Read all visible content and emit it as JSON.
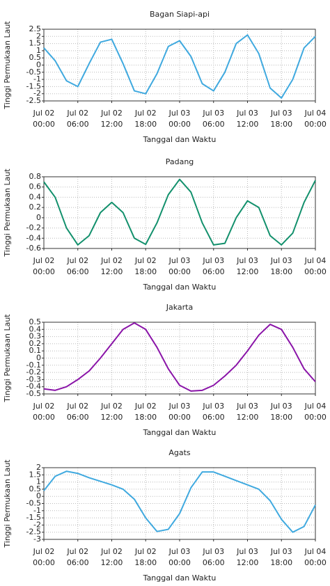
{
  "chart_data": [
    {
      "type": "line",
      "title": "Bagan Siapi-api",
      "x_label": "Tanggal dan Waktu",
      "y_label": "Tinggi Permukaan Laut",
      "color": "#3fa9df",
      "grid": true,
      "x": [
        "Jul 02 00:00",
        "Jul 02 02:00",
        "Jul 02 04:00",
        "Jul 02 06:00",
        "Jul 02 08:00",
        "Jul 02 10:00",
        "Jul 02 12:00",
        "Jul 02 14:00",
        "Jul 02 16:00",
        "Jul 02 18:00",
        "Jul 02 20:00",
        "Jul 02 22:00",
        "Jul 03 00:00",
        "Jul 03 02:00",
        "Jul 03 04:00",
        "Jul 03 06:00",
        "Jul 03 08:00",
        "Jul 03 10:00",
        "Jul 03 12:00",
        "Jul 03 14:00",
        "Jul 03 16:00",
        "Jul 03 18:00",
        "Jul 03 20:00",
        "Jul 03 22:00",
        "Jul 04 00:00"
      ],
      "values": [
        1.2,
        0.3,
        -1.1,
        -1.5,
        0.1,
        1.6,
        1.8,
        0.1,
        -1.8,
        -2.0,
        -0.6,
        1.3,
        1.7,
        0.6,
        -1.3,
        -1.8,
        -0.5,
        1.5,
        2.1,
        0.8,
        -1.6,
        -2.3,
        -1.0,
        1.2,
        2.0
      ],
      "xlim": [
        "Jul 02 00:00",
        "Jul 04 00:00"
      ],
      "xticks": [
        "Jul 02 00:00",
        "Jul 02 06:00",
        "Jul 02 12:00",
        "Jul 02 18:00",
        "Jul 03 00:00",
        "Jul 03 06:00",
        "Jul 03 12:00",
        "Jul 03 18:00",
        "Jul 04 00:00"
      ],
      "ylim": [
        -2.5,
        2.5
      ],
      "yticks": [
        -2.5,
        -2,
        -1.5,
        -1,
        -0.5,
        0,
        0.5,
        1,
        1.5,
        2,
        2.5
      ]
    },
    {
      "type": "line",
      "title": "Padang",
      "x_label": "Tanggal dan Waktu",
      "y_label": "Tinggi Permukaan Laut",
      "color": "#12906c",
      "grid": true,
      "x": [
        "Jul 02 00:00",
        "Jul 02 02:00",
        "Jul 02 04:00",
        "Jul 02 06:00",
        "Jul 02 08:00",
        "Jul 02 10:00",
        "Jul 02 12:00",
        "Jul 02 14:00",
        "Jul 02 16:00",
        "Jul 02 18:00",
        "Jul 02 20:00",
        "Jul 02 22:00",
        "Jul 03 00:00",
        "Jul 03 02:00",
        "Jul 03 04:00",
        "Jul 03 06:00",
        "Jul 03 08:00",
        "Jul 03 10:00",
        "Jul 03 12:00",
        "Jul 03 14:00",
        "Jul 03 16:00",
        "Jul 03 18:00",
        "Jul 03 20:00",
        "Jul 03 22:00",
        "Jul 04 00:00"
      ],
      "values": [
        0.7,
        0.4,
        -0.2,
        -0.53,
        -0.35,
        0.1,
        0.3,
        0.1,
        -0.4,
        -0.52,
        -0.1,
        0.45,
        0.75,
        0.5,
        -0.1,
        -0.53,
        -0.5,
        0.0,
        0.33,
        0.2,
        -0.35,
        -0.53,
        -0.3,
        0.3,
        0.73
      ],
      "xlim": [
        "Jul 02 00:00",
        "Jul 04 00:00"
      ],
      "xticks": [
        "Jul 02 00:00",
        "Jul 02 06:00",
        "Jul 02 12:00",
        "Jul 02 18:00",
        "Jul 03 00:00",
        "Jul 03 06:00",
        "Jul 03 12:00",
        "Jul 03 18:00",
        "Jul 04 00:00"
      ],
      "ylim": [
        -0.6,
        0.8
      ],
      "yticks": [
        -0.6,
        -0.4,
        -0.2,
        0,
        0.2,
        0.4,
        0.6,
        0.8
      ]
    },
    {
      "type": "line",
      "title": "Jakarta",
      "x_label": "Tanggal dan Waktu",
      "y_label": "Tinggi Permukaan Laut",
      "color": "#8a14a8",
      "grid": true,
      "x": [
        "Jul 02 00:00",
        "Jul 02 02:00",
        "Jul 02 04:00",
        "Jul 02 06:00",
        "Jul 02 08:00",
        "Jul 02 10:00",
        "Jul 02 12:00",
        "Jul 02 14:00",
        "Jul 02 16:00",
        "Jul 02 18:00",
        "Jul 02 20:00",
        "Jul 02 22:00",
        "Jul 03 00:00",
        "Jul 03 02:00",
        "Jul 03 04:00",
        "Jul 03 06:00",
        "Jul 03 08:00",
        "Jul 03 10:00",
        "Jul 03 12:00",
        "Jul 03 14:00",
        "Jul 03 16:00",
        "Jul 03 18:00",
        "Jul 03 20:00",
        "Jul 03 22:00",
        "Jul 04 00:00"
      ],
      "values": [
        -0.43,
        -0.45,
        -0.4,
        -0.3,
        -0.18,
        0.0,
        0.2,
        0.4,
        0.49,
        0.4,
        0.15,
        -0.15,
        -0.38,
        -0.46,
        -0.45,
        -0.38,
        -0.25,
        -0.1,
        0.1,
        0.32,
        0.47,
        0.4,
        0.15,
        -0.15,
        -0.33
      ],
      "xlim": [
        "Jul 02 00:00",
        "Jul 04 00:00"
      ],
      "xticks": [
        "Jul 02 00:00",
        "Jul 02 06:00",
        "Jul 02 12:00",
        "Jul 02 18:00",
        "Jul 03 00:00",
        "Jul 03 06:00",
        "Jul 03 12:00",
        "Jul 03 18:00",
        "Jul 04 00:00"
      ],
      "ylim": [
        -0.5,
        0.5
      ],
      "yticks": [
        -0.5,
        -0.4,
        -0.3,
        -0.2,
        -0.1,
        0,
        0.1,
        0.2,
        0.3,
        0.4,
        0.5
      ]
    },
    {
      "type": "line",
      "title": "Agats",
      "x_label": "Tanggal dan Waktu",
      "y_label": "Tinggi Permukaan Laut",
      "color": "#3fa9df",
      "grid": true,
      "x": [
        "Jul 02 00:00",
        "Jul 02 02:00",
        "Jul 02 04:00",
        "Jul 02 06:00",
        "Jul 02 08:00",
        "Jul 02 10:00",
        "Jul 02 12:00",
        "Jul 02 14:00",
        "Jul 02 16:00",
        "Jul 02 18:00",
        "Jul 02 20:00",
        "Jul 02 22:00",
        "Jul 03 00:00",
        "Jul 03 02:00",
        "Jul 03 04:00",
        "Jul 03 06:00",
        "Jul 03 08:00",
        "Jul 03 10:00",
        "Jul 03 12:00",
        "Jul 03 14:00",
        "Jul 03 16:00",
        "Jul 03 18:00",
        "Jul 03 20:00",
        "Jul 03 22:00",
        "Jul 04 00:00"
      ],
      "values": [
        0.4,
        1.4,
        1.75,
        1.6,
        1.3,
        1.05,
        0.8,
        0.5,
        -0.2,
        -1.5,
        -2.45,
        -2.3,
        -1.2,
        0.6,
        1.7,
        1.7,
        1.4,
        1.1,
        0.8,
        0.5,
        -0.3,
        -1.6,
        -2.5,
        -2.1,
        -0.6
      ],
      "xlim": [
        "Jul 02 00:00",
        "Jul 04 00:00"
      ],
      "xticks": [
        "Jul 02 00:00",
        "Jul 02 06:00",
        "Jul 02 12:00",
        "Jul 02 18:00",
        "Jul 03 00:00",
        "Jul 03 06:00",
        "Jul 03 12:00",
        "Jul 03 18:00",
        "Jul 04 00:00"
      ],
      "ylim": [
        -3,
        2
      ],
      "yticks": [
        -3,
        -2.5,
        -2,
        -1.5,
        -1,
        -0.5,
        0,
        0.5,
        1,
        1.5,
        2
      ]
    }
  ]
}
